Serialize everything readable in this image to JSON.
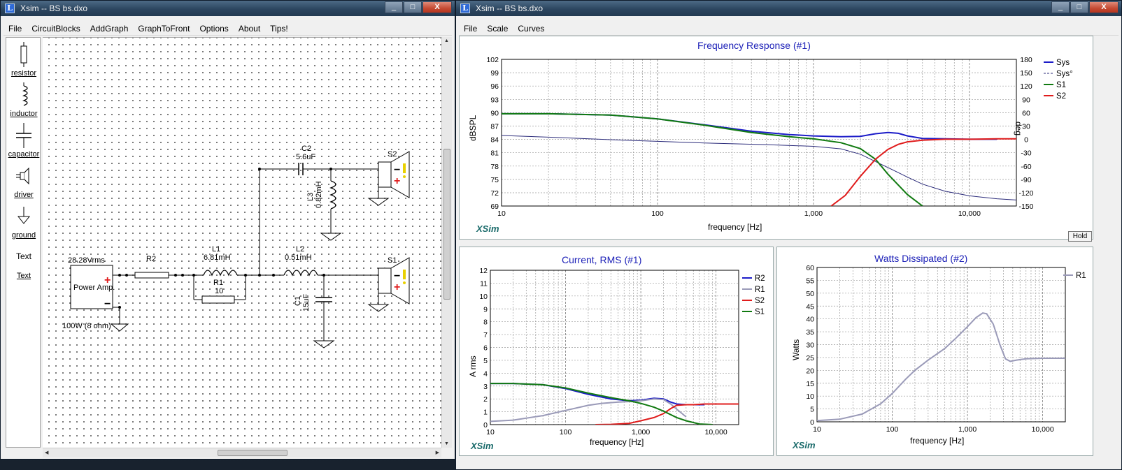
{
  "xsim_left": {
    "title": "Xsim -- BS bs.dxo",
    "window_buttons": [
      "_",
      "□",
      "X"
    ],
    "menu": [
      "File",
      "CircuitBlocks",
      "AddGraph",
      "GraphToFront",
      "Options",
      "About",
      "Tips!"
    ],
    "palette": [
      {
        "name": "resistor",
        "label": "resistor"
      },
      {
        "name": "inductor",
        "label": "inductor"
      },
      {
        "name": "capacitor",
        "label": "capacitor"
      },
      {
        "name": "driver",
        "label": "driver"
      },
      {
        "name": "ground",
        "label": "ground"
      }
    ],
    "palette_text_1": "Text",
    "palette_text_2": "Text",
    "circuit": {
      "source_voltage": "28.28Vrms",
      "source_name": "Power Amp.",
      "source_power": "100W (8 ohm)",
      "r2": "R2",
      "l1": "L1",
      "l1_val": "6.81mH",
      "r1": "R1",
      "r1_val": "10",
      "l2": "L2",
      "l2_val": "0.51mH",
      "c1": "C1",
      "c1_val": "15uF",
      "c2": "C2",
      "c2_val": "5.6uF",
      "l3": "L3",
      "l3_val": "0.82mH",
      "s1": "S1",
      "s2": "S2",
      "plus": "+",
      "minus": "−"
    }
  },
  "xsim_right": {
    "title": "Xsim -- BS bs.dxo",
    "window_buttons": [
      "_",
      "□",
      "X"
    ],
    "menu": [
      "File",
      "Scale",
      "Curves"
    ],
    "hold_label": "Hold",
    "xsim_label": "XSim"
  },
  "colors": {
    "blue": "#1c1cc8",
    "navy_dash": "#2b2b7a",
    "green": "#117a11",
    "red": "#e01c1c",
    "grey": "#9a9ab8",
    "title": "#1e22b8"
  },
  "chart_data": [
    {
      "type": "line",
      "title": "Frequency Response (#1)",
      "xlabel": "frequency [Hz]",
      "ylabel": "dBSPL",
      "y2label": "deg",
      "xscale": "log",
      "xlim": [
        10,
        20000
      ],
      "ylim": [
        67.5,
        102
      ],
      "y2lim": [
        -172.5,
        180
      ],
      "xticks": [
        "10",
        "100",
        "1,000",
        "10,000"
      ],
      "yticks": [
        "102",
        "99",
        "96",
        "93",
        "90",
        "87",
        "84",
        "81",
        "78",
        "75",
        "72",
        "69"
      ],
      "y2ticks": [
        "180",
        "150",
        "120",
        "90",
        "60",
        "30",
        "0",
        "-30",
        "-60",
        "-90",
        "-120",
        "-150"
      ],
      "grid": true,
      "legend": "top-right",
      "series": [
        {
          "name": "Sys",
          "axis": "left",
          "x": [
            10,
            20,
            50,
            100,
            200,
            400,
            700,
            1000,
            1500,
            2000,
            2500,
            3000,
            3500,
            4000,
            5000,
            7000,
            10000,
            15000
          ],
          "y": [
            89.2,
            89.2,
            88.9,
            88.0,
            86.6,
            85.1,
            84.3,
            84.0,
            83.8,
            83.9,
            84.5,
            84.8,
            84.6,
            84.0,
            83.4,
            83.3,
            83.2,
            83.2
          ]
        },
        {
          "name": "Sys°",
          "axis": "right",
          "x": [
            10,
            20,
            50,
            100,
            200,
            500,
            1000,
            1500,
            2000,
            3000,
            4000,
            5000,
            7000,
            10000,
            15000,
            20000
          ],
          "y": [
            -3,
            -7,
            -13,
            -17,
            -21,
            -25,
            -29,
            -35,
            -48,
            -80,
            -103,
            -120,
            -137,
            -148,
            -155,
            -158
          ]
        },
        {
          "name": "S1",
          "axis": "left",
          "x": [
            10,
            20,
            50,
            100,
            200,
            400,
            700,
            1000,
            1500,
            2000,
            2500,
            3000,
            4000,
            5000
          ],
          "y": [
            89.2,
            89.2,
            88.9,
            88.0,
            86.5,
            84.8,
            83.8,
            83.3,
            82.4,
            81.0,
            78.5,
            75.0,
            70.2,
            67.5
          ]
        },
        {
          "name": "S2",
          "axis": "left",
          "x": [
            1300,
            1600,
            2000,
            2500,
            3000,
            3500,
            4000,
            5000,
            7000,
            10000,
            15000,
            20000
          ],
          "y": [
            67.5,
            70.0,
            74.5,
            78.5,
            80.8,
            82.0,
            82.6,
            83.0,
            83.2,
            83.2,
            83.3,
            83.3
          ]
        }
      ]
    },
    {
      "type": "line",
      "title": "Current, RMS (#1)",
      "xlabel": "frequency [Hz]",
      "ylabel": "A rms",
      "xscale": "log",
      "xlim": [
        10,
        20000
      ],
      "ylim": [
        0,
        12
      ],
      "xticks": [
        "10",
        "100",
        "1,000",
        "10,000"
      ],
      "yticks": [
        "12",
        "11",
        "10",
        "9",
        "8",
        "7",
        "6",
        "5",
        "4",
        "3",
        "2",
        "1",
        "0"
      ],
      "grid": true,
      "legend": "right",
      "series": [
        {
          "name": "R2",
          "x": [
            10,
            20,
            50,
            100,
            200,
            400,
            700,
            1000,
            1500,
            2000,
            2500,
            3000,
            4000,
            5000,
            7000
          ],
          "y": [
            3.2,
            3.2,
            3.1,
            2.8,
            2.35,
            2.0,
            1.85,
            1.9,
            2.05,
            2.0,
            1.75,
            1.6,
            1.55,
            1.55,
            1.55
          ]
        },
        {
          "name": "R1",
          "x": [
            10,
            20,
            50,
            100,
            200,
            300,
            500,
            800,
            1000,
            1500,
            2000,
            2500,
            3000,
            4000
          ],
          "y": [
            0.25,
            0.35,
            0.7,
            1.1,
            1.5,
            1.65,
            1.75,
            1.8,
            1.85,
            2.0,
            1.95,
            1.6,
            1.2,
            0.6
          ]
        },
        {
          "name": "S2",
          "x": [
            250,
            400,
            700,
            1000,
            1500,
            2000,
            2500,
            3000,
            4000,
            5000,
            7000,
            10000,
            20000
          ],
          "y": [
            0,
            0.02,
            0.1,
            0.3,
            0.55,
            0.85,
            1.25,
            1.5,
            1.55,
            1.55,
            1.6,
            1.6,
            1.6
          ]
        },
        {
          "name": "S1",
          "x": [
            10,
            20,
            50,
            100,
            200,
            400,
            700,
            1000,
            1500,
            2000,
            3000,
            4000,
            6000,
            9000
          ],
          "y": [
            3.2,
            3.2,
            3.1,
            2.85,
            2.45,
            2.1,
            1.85,
            1.65,
            1.35,
            1.05,
            0.55,
            0.3,
            0.05,
            0
          ]
        }
      ]
    },
    {
      "type": "line",
      "title": "Watts Dissipated (#2)",
      "xlabel": "frequency [Hz]",
      "ylabel": "Watts",
      "xscale": "log",
      "xlim": [
        10,
        20000
      ],
      "ylim": [
        0,
        60
      ],
      "xticks": [
        "10",
        "100",
        "1,000",
        "10,000"
      ],
      "yticks": [
        "60",
        "55",
        "50",
        "45",
        "40",
        "35",
        "30",
        "25",
        "20",
        "15",
        "10",
        "5",
        "0"
      ],
      "grid": true,
      "legend": "right",
      "series": [
        {
          "name": "R1",
          "x": [
            10,
            20,
            40,
            70,
            100,
            150,
            200,
            300,
            500,
            700,
            1000,
            1300,
            1600,
            1800,
            2200,
            2700,
            3200,
            3700,
            4500,
            6000,
            10000,
            20000
          ],
          "y": [
            0.5,
            1.0,
            3.0,
            7.0,
            11.0,
            16.5,
            20.0,
            24.0,
            28.5,
            32.5,
            37.0,
            40.5,
            42.3,
            42.0,
            38.0,
            30.0,
            24.5,
            23.5,
            24.0,
            24.5,
            24.7,
            24.7
          ]
        }
      ]
    }
  ]
}
